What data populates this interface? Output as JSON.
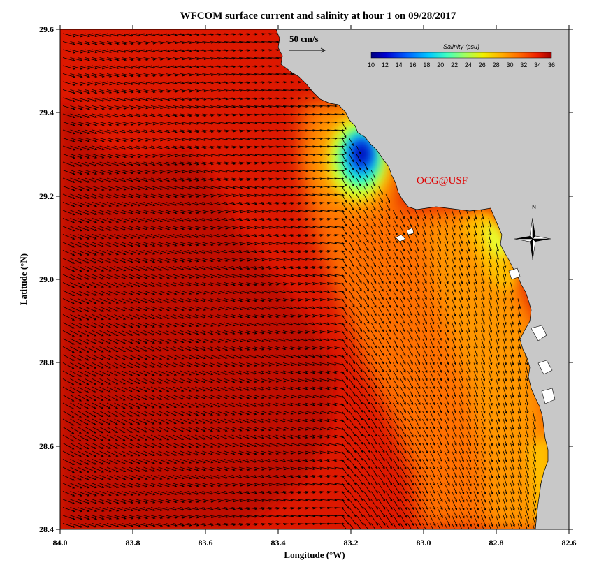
{
  "title": "WFCOM surface current and salinity at hour 1 on 09/28/2017",
  "x_axis": {
    "label": "Longitude (°W)",
    "ticks": [
      "84.0",
      "83.8",
      "83.6",
      "83.4",
      "83.2",
      "83.0",
      "82.8",
      "82.6"
    ],
    "range": [
      84.0,
      82.6
    ]
  },
  "y_axis": {
    "label": "Latitude (°N)",
    "ticks": [
      "29.6",
      "29.4",
      "29.2",
      "29.0",
      "28.8",
      "28.6",
      "28.4"
    ],
    "range": [
      28.4,
      29.6
    ]
  },
  "colorbar": {
    "title": "Salinity (psu)",
    "ticks": [
      "10",
      "12",
      "14",
      "16",
      "18",
      "20",
      "22",
      "24",
      "26",
      "28",
      "30",
      "32",
      "34",
      "36"
    ],
    "range": [
      10,
      36
    ],
    "colors": [
      "#00007f",
      "#0000c8",
      "#0032ff",
      "#0080ff",
      "#00c8ff",
      "#32ffcb",
      "#7fff80",
      "#c8ff37",
      "#ffe600",
      "#ffaa00",
      "#ff7a00",
      "#ff4a00",
      "#e41000",
      "#a00000"
    ]
  },
  "vector_scale": {
    "label": "50 cm/s"
  },
  "credit": "OCG@USF",
  "north_label": "N",
  "colors": {
    "land": "#c8c8c8",
    "sea_base": "#dd1800",
    "offshore": "#c81200",
    "low_salinity": "#0000c0"
  }
}
